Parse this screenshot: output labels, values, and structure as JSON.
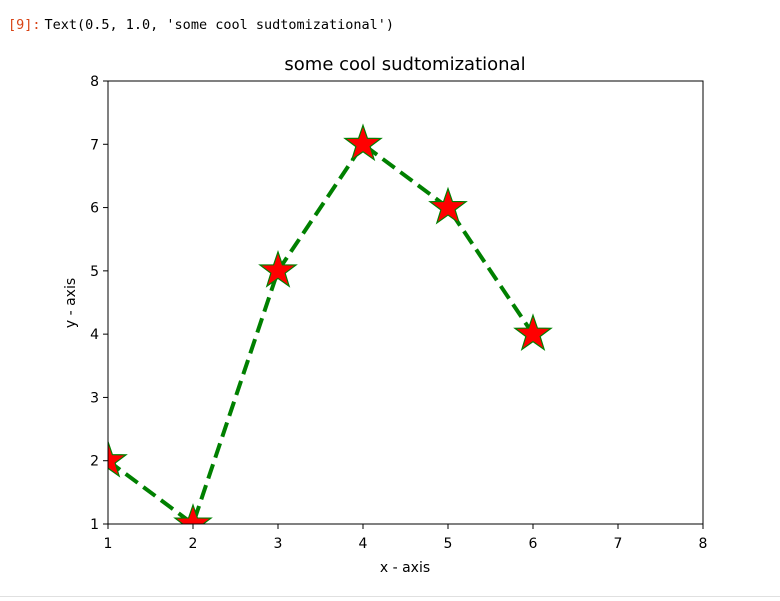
{
  "cell": {
    "prompt": "[9]:",
    "output_text": "Text(0.5, 1.0, 'some cool sudtomizational')"
  },
  "chart_data": {
    "type": "line",
    "title": "some cool sudtomizational",
    "xlabel": "x - axis",
    "ylabel": "y - axis",
    "x": [
      1,
      2,
      3,
      4,
      5,
      6
    ],
    "y": [
      2,
      1,
      5,
      7,
      6,
      4
    ],
    "xlim": [
      1,
      8
    ],
    "ylim": [
      1,
      8
    ],
    "xticks": [
      1,
      2,
      3,
      4,
      5,
      6,
      7,
      8
    ],
    "yticks": [
      1,
      2,
      3,
      4,
      5,
      6,
      7,
      8
    ],
    "grid": false,
    "line_style": "dashed",
    "line_color": "#008000",
    "marker": "star",
    "marker_face_color": "#ff0000",
    "marker_edge_color": "#008000"
  }
}
